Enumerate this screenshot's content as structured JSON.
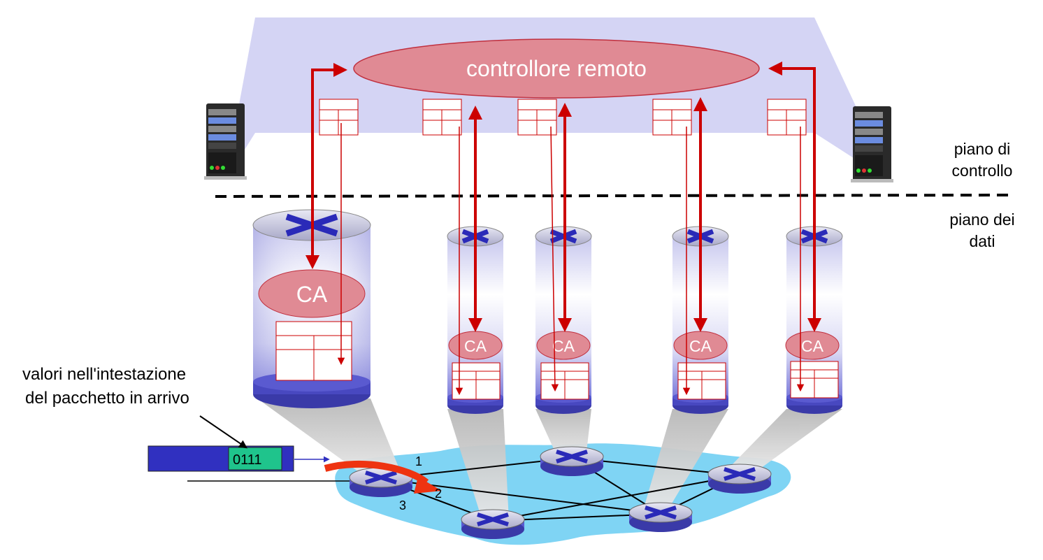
{
  "controller": {
    "label": "controllore remoto",
    "fill": "#e08a94",
    "stroke": "#c0303f"
  },
  "plane_labels": {
    "control": [
      "piano di",
      "controllo"
    ],
    "data": [
      "piano dei",
      "dati"
    ]
  },
  "agent_label": "CA",
  "packet": {
    "caption": [
      "valori nell'intestazione",
      "del pacchetto in arrivo"
    ],
    "header_value": "0111",
    "color": "#3030c0",
    "header_color": "#1fc48c"
  },
  "port_labels": [
    "1",
    "2",
    "3"
  ],
  "colors": {
    "control_plane_bg": "#d4d4f4",
    "network_cloud": "#7fd4f4",
    "arrow": "#cc0000",
    "router_body": "#5a5ad0"
  }
}
